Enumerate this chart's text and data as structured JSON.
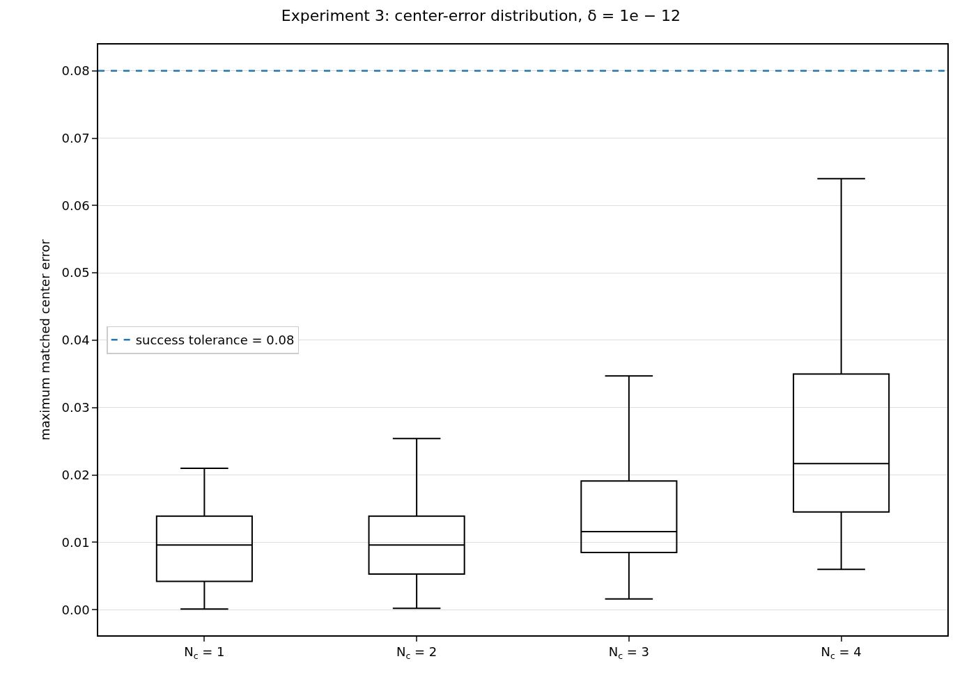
{
  "chart_data": {
    "type": "box",
    "title": "Experiment 3: center-error distribution, δ = 1e − 12",
    "ylabel": "maximum matched center error",
    "categories": [
      "N$_{c}$ = 1",
      "N$_{c}$ = 2",
      "N$_{c}$ = 3",
      "N$_{c}$ = 4"
    ],
    "series": [
      {
        "color": "#000000",
        "boxes": [
          {
            "low": 0.0001,
            "q1": 0.0042,
            "median": 0.0096,
            "q3": 0.0139,
            "high": 0.021
          },
          {
            "low": 0.0002,
            "q1": 0.0053,
            "median": 0.0096,
            "q3": 0.0139,
            "high": 0.0254
          },
          {
            "low": 0.0016,
            "q1": 0.0085,
            "median": 0.0116,
            "q3": 0.0191,
            "high": 0.0347
          },
          {
            "low": 0.006,
            "q1": 0.0145,
            "median": 0.0217,
            "q3": 0.035,
            "high": 0.064
          }
        ]
      }
    ],
    "ylim": [
      -0.0038,
      0.0839
    ],
    "yticks": [
      {
        "value": 0,
        "label": "0.00"
      },
      {
        "value": 0.01,
        "label": "0.01"
      },
      {
        "value": 0.02,
        "label": "0.02"
      },
      {
        "value": 0.03,
        "label": "0.03"
      },
      {
        "value": 0.04,
        "label": "0.04"
      },
      {
        "value": 0.05,
        "label": "0.05"
      },
      {
        "value": 0.06,
        "label": "0.06"
      },
      {
        "value": 0.07,
        "label": "0.07"
      },
      {
        "value": 0.08,
        "label": "0.08"
      }
    ],
    "ref_lines": [
      {
        "axis": "y",
        "value": 0.08,
        "label": "success tolerance = 0.08",
        "color": "#1f77b4",
        "line_style": "dashed"
      }
    ],
    "grid": "y",
    "legend": "left"
  }
}
